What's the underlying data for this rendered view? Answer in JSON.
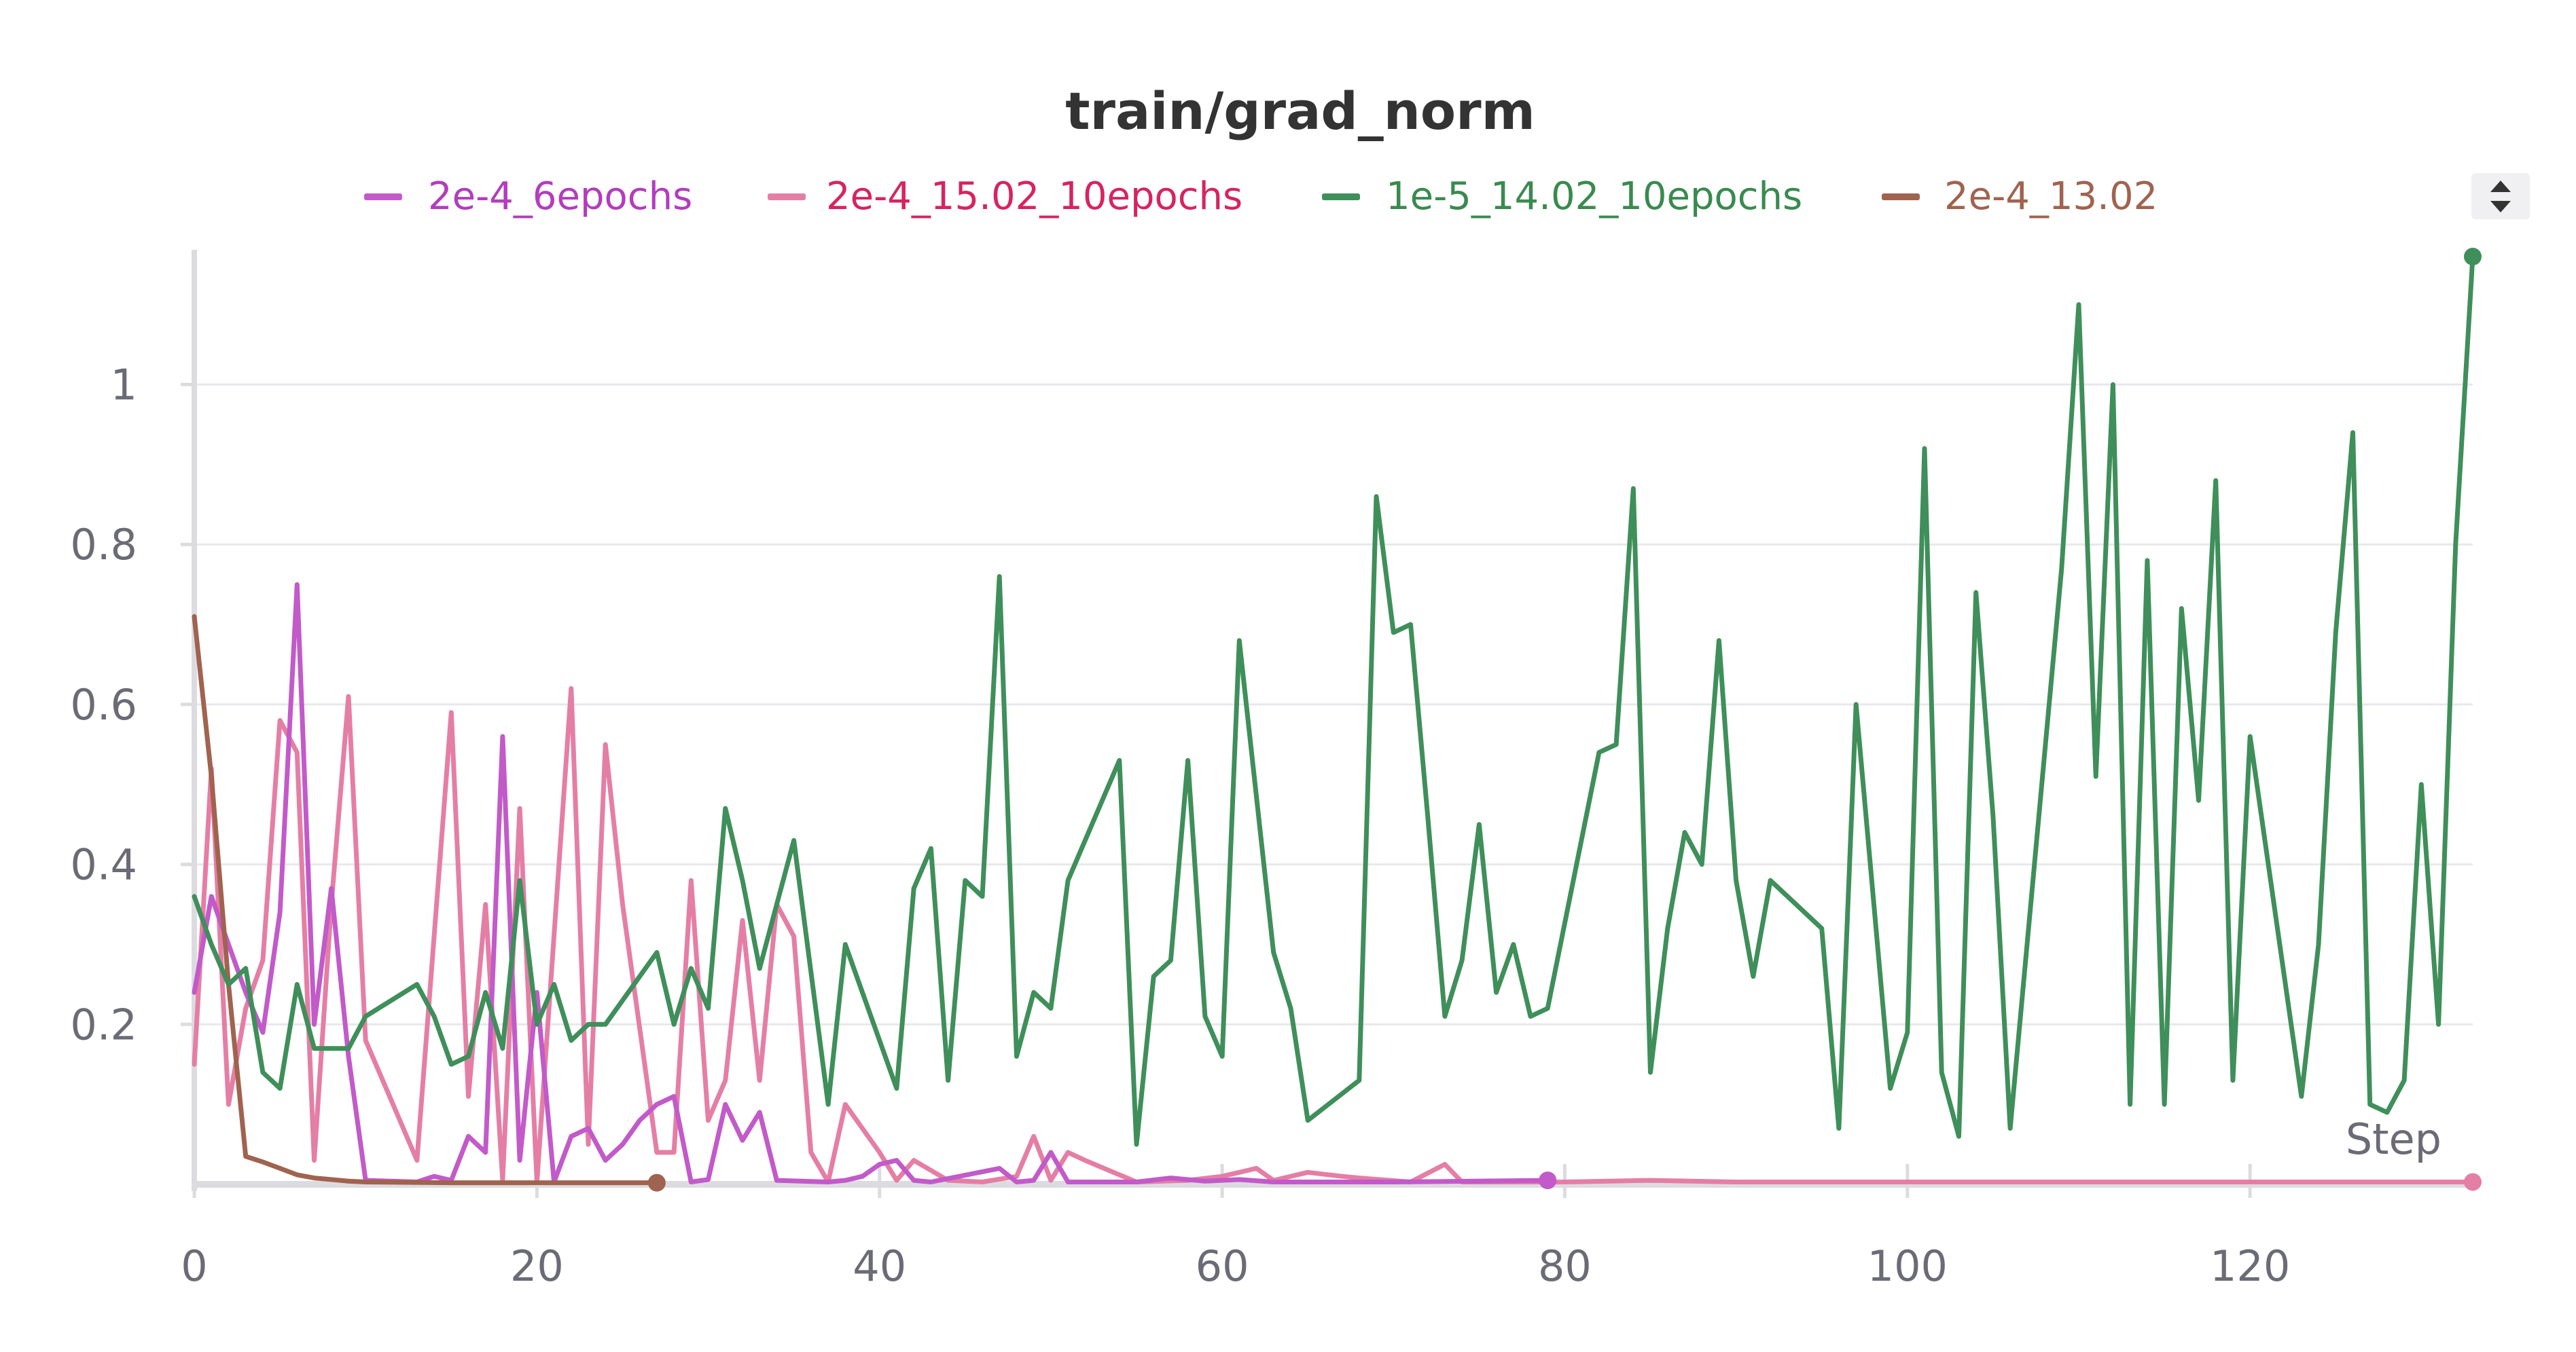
{
  "chart_data": {
    "type": "line",
    "title": "train/grad_norm",
    "xlabel": "Step",
    "ylabel": "",
    "xlim": [
      0,
      133
    ],
    "ylim": [
      0,
      1.16
    ],
    "x_ticks": [
      0,
      20,
      40,
      60,
      80,
      100,
      120
    ],
    "y_ticks": [
      0.2,
      0.4,
      0.6,
      0.8,
      1
    ],
    "grid": true,
    "legend_position": "top-center",
    "series": [
      {
        "name": "2e-4_6epochs",
        "color": "#c25ac9",
        "text_color": "#b23dbd",
        "x": [
          0,
          1,
          2,
          3,
          4,
          5,
          6,
          7,
          8,
          9,
          10,
          13,
          14,
          15,
          16,
          17,
          18,
          19,
          20,
          21,
          22,
          23,
          24,
          25,
          26,
          27,
          28,
          29,
          30,
          31,
          32,
          33,
          34,
          37,
          38,
          39,
          40,
          41,
          42,
          43,
          47,
          48,
          49,
          50,
          51,
          55,
          57,
          59,
          61,
          63,
          70,
          79
        ],
        "y": [
          0.24,
          0.36,
          0.3,
          0.24,
          0.19,
          0.34,
          0.75,
          0.2,
          0.37,
          0.16,
          0.005,
          0.003,
          0.01,
          0.005,
          0.06,
          0.04,
          0.56,
          0.03,
          0.24,
          0.003,
          0.06,
          0.07,
          0.03,
          0.05,
          0.08,
          0.1,
          0.11,
          0.003,
          0.006,
          0.1,
          0.055,
          0.09,
          0.005,
          0.003,
          0.005,
          0.01,
          0.025,
          0.03,
          0.005,
          0.003,
          0.02,
          0.003,
          0.005,
          0.04,
          0.003,
          0.003,
          0.008,
          0.004,
          0.006,
          0.003,
          0.003,
          0.005
        ]
      },
      {
        "name": "2e-4_15.02_10epochs",
        "color": "#e57ea5",
        "text_color": "#d6245f",
        "x": [
          0,
          1,
          2,
          3,
          4,
          5,
          6,
          7,
          8,
          9,
          10,
          13,
          15,
          16,
          17,
          18,
          19,
          20,
          22,
          23,
          24,
          25,
          27,
          28,
          29,
          30,
          31,
          32,
          33,
          34,
          35,
          36,
          37,
          38,
          40,
          41,
          42,
          44,
          46,
          48,
          49,
          50,
          51,
          52,
          55,
          58,
          60,
          61,
          62,
          63,
          65,
          67,
          68,
          71,
          73,
          74,
          80,
          85,
          90,
          95,
          100,
          105,
          110,
          115,
          120,
          125,
          130,
          133
        ],
        "y": [
          0.15,
          0.52,
          0.1,
          0.22,
          0.28,
          0.58,
          0.54,
          0.03,
          0.35,
          0.61,
          0.18,
          0.03,
          0.59,
          0.11,
          0.35,
          0.005,
          0.47,
          0.003,
          0.62,
          0.05,
          0.55,
          0.35,
          0.04,
          0.04,
          0.38,
          0.08,
          0.13,
          0.33,
          0.13,
          0.35,
          0.31,
          0.04,
          0.003,
          0.1,
          0.04,
          0.005,
          0.03,
          0.005,
          0.003,
          0.01,
          0.06,
          0.005,
          0.04,
          0.03,
          0.003,
          0.005,
          0.01,
          0.015,
          0.02,
          0.005,
          0.015,
          0.01,
          0.008,
          0.003,
          0.025,
          0.003,
          0.003,
          0.005,
          0.003,
          0.003,
          0.003,
          0.003,
          0.003,
          0.003,
          0.003,
          0.003,
          0.003,
          0.003
        ]
      },
      {
        "name": "1e-5_14.02_10epochs",
        "color": "#3f8f5a",
        "text_color": "#3a8a4f",
        "x": [
          0,
          1,
          2,
          3,
          4,
          5,
          6,
          7,
          8,
          9,
          10,
          13,
          14,
          15,
          16,
          17,
          18,
          19,
          20,
          21,
          22,
          23,
          24,
          27,
          28,
          29,
          30,
          31,
          32,
          33,
          34,
          35,
          37,
          38,
          41,
          42,
          43,
          44,
          45,
          46,
          47,
          48,
          49,
          50,
          51,
          54,
          55,
          56,
          57,
          58,
          59,
          60,
          61,
          63,
          64,
          65,
          68,
          69,
          70,
          71,
          72,
          73,
          74,
          75,
          76,
          77,
          78,
          79,
          82,
          83,
          84,
          85,
          86,
          87,
          88,
          89,
          90,
          91,
          92,
          95,
          96,
          97,
          99,
          100,
          101,
          102,
          103,
          104,
          105,
          106,
          109,
          110,
          111,
          112,
          113,
          114,
          115,
          116,
          117,
          118,
          119,
          120,
          123,
          124,
          125,
          126,
          127,
          128,
          129,
          130,
          131,
          132,
          133
        ],
        "y": [
          0.36,
          0.3,
          0.25,
          0.27,
          0.14,
          0.12,
          0.25,
          0.17,
          0.17,
          0.17,
          0.21,
          0.25,
          0.21,
          0.15,
          0.16,
          0.24,
          0.17,
          0.38,
          0.2,
          0.25,
          0.18,
          0.2,
          0.2,
          0.29,
          0.2,
          0.27,
          0.22,
          0.47,
          0.38,
          0.27,
          0.35,
          0.43,
          0.1,
          0.3,
          0.12,
          0.37,
          0.42,
          0.13,
          0.38,
          0.36,
          0.76,
          0.16,
          0.24,
          0.22,
          0.38,
          0.53,
          0.05,
          0.26,
          0.28,
          0.53,
          0.21,
          0.16,
          0.68,
          0.29,
          0.22,
          0.08,
          0.13,
          0.86,
          0.69,
          0.7,
          0.46,
          0.21,
          0.28,
          0.45,
          0.24,
          0.3,
          0.21,
          0.22,
          0.54,
          0.55,
          0.87,
          0.14,
          0.32,
          0.44,
          0.4,
          0.68,
          0.38,
          0.26,
          0.38,
          0.32,
          0.07,
          0.6,
          0.12,
          0.19,
          0.92,
          0.14,
          0.06,
          0.74,
          0.46,
          0.07,
          0.77,
          1.1,
          0.51,
          1.0,
          0.1,
          0.78,
          0.1,
          0.72,
          0.48,
          0.88,
          0.13,
          0.56,
          0.11,
          0.3,
          0.69,
          0.94,
          0.1,
          0.09,
          0.13,
          0.5,
          0.2,
          0.8,
          1.16
        ]
      },
      {
        "name": "2e-4_13.02",
        "color": "#a0634f",
        "text_color": "#a0634f",
        "x": [
          0,
          1,
          2,
          3,
          4,
          5,
          6,
          7,
          8,
          9,
          10,
          15,
          20,
          25,
          27
        ],
        "y": [
          0.71,
          0.51,
          0.25,
          0.035,
          0.028,
          0.02,
          0.012,
          0.008,
          0.006,
          0.004,
          0.003,
          0.002,
          0.002,
          0.002,
          0.002
        ]
      }
    ]
  }
}
